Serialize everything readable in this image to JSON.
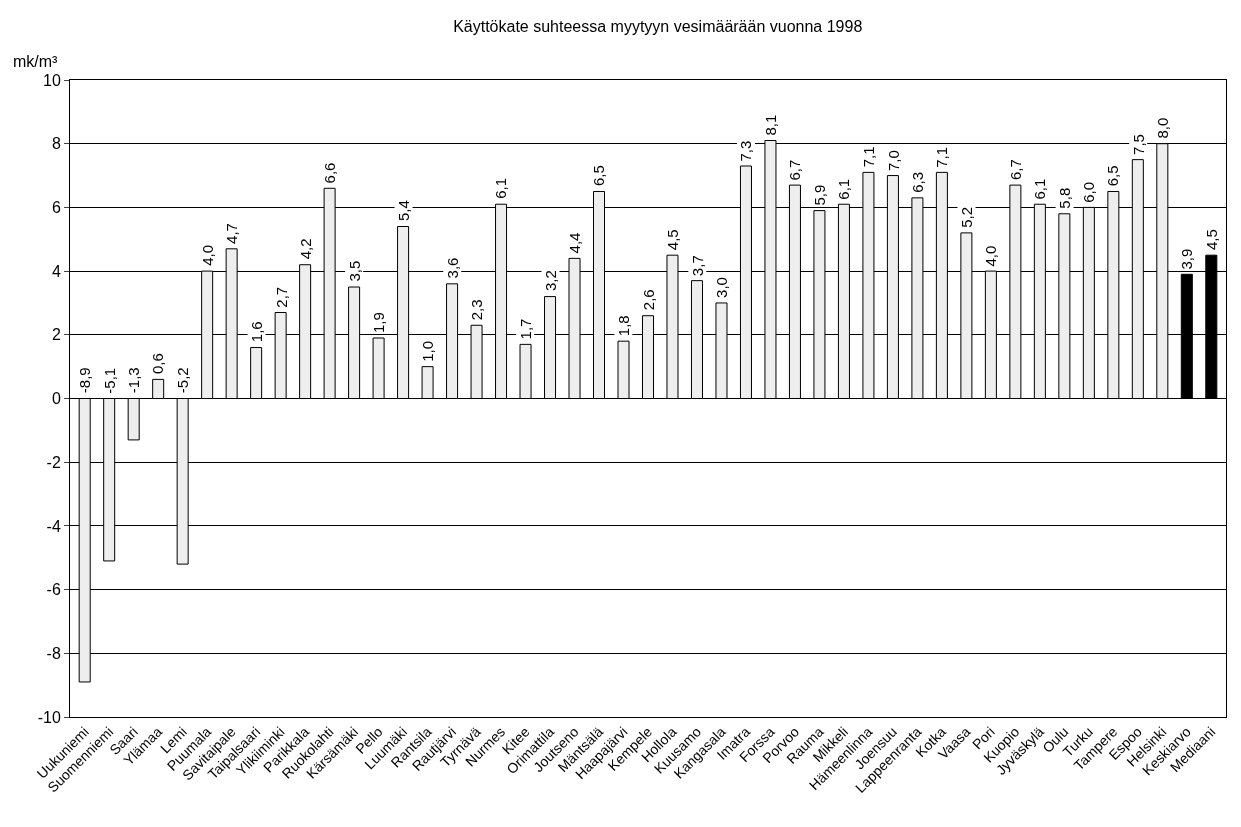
{
  "chart_data": {
    "type": "bar",
    "title": "Käyttökate suhteessa myytyyn vesimäärään vuonna 1998",
    "ylabel": "mk/m³",
    "categories": [
      "Uukuniemi",
      "Suomenniemi",
      "Saari",
      "Ylämaa",
      "Lemi",
      "Puumala",
      "Savitaipale",
      "Taipalsaari",
      "Ylikiiminki",
      "Parikkala",
      "Ruokolahti",
      "Kärsämäki",
      "Pello",
      "Luumäki",
      "Rantsila",
      "Rautjärvi",
      "Tyrnävä",
      "Nurmes",
      "Kitee",
      "Orimattila",
      "Joutseno",
      "Mäntsälä",
      "Haapajärvi",
      "Kempele",
      "Hollola",
      "Kuusamo",
      "Kangasala",
      "Imatra",
      "Forssa",
      "Porvoo",
      "Rauma",
      "Mikkeli",
      "Hämeenlinna",
      "Joensuu",
      "Lappeenranta",
      "Kotka",
      "Vaasa",
      "Pori",
      "Kuopio",
      "Jyväskylä",
      "Oulu",
      "Turku",
      "Tampere",
      "Espoo",
      "Helsinki",
      "Keskiarvo",
      "Mediaani"
    ],
    "values": [
      -8.9,
      -5.1,
      -1.3,
      0.6,
      -5.2,
      4.0,
      4.7,
      1.6,
      2.7,
      4.2,
      6.6,
      3.5,
      1.9,
      5.4,
      1.0,
      3.6,
      2.3,
      6.1,
      1.7,
      3.2,
      4.4,
      6.5,
      1.8,
      2.6,
      4.5,
      3.7,
      3.0,
      7.3,
      8.1,
      6.7,
      5.9,
      6.1,
      7.1,
      7.0,
      6.3,
      7.1,
      5.2,
      4.0,
      6.7,
      6.1,
      5.8,
      6.0,
      6.5,
      7.5,
      8.0,
      3.9,
      4.5
    ],
    "value_labels": [
      "-8,9",
      "-5,1",
      "-1,3",
      "0,6",
      "-5,2",
      "4,0",
      "4,7",
      "1,6",
      "2,7",
      "4,2",
      "6,6",
      "3,5",
      "1,9",
      "5,4",
      "1,0",
      "3,6",
      "2,3",
      "6,1",
      "1,7",
      "3,2",
      "4,4",
      "6,5",
      "1,8",
      "2,6",
      "4,5",
      "3,7",
      "3,0",
      "7,3",
      "8,1",
      "6,7",
      "5,9",
      "6,1",
      "7,1",
      "7,0",
      "6,3",
      "7,1",
      "5,2",
      "4,0",
      "6,7",
      "6,1",
      "5,8",
      "6,0",
      "6,5",
      "7,5",
      "8,0",
      "3,9",
      "4,5"
    ],
    "colors": [
      "#eeeeee",
      "#eeeeee",
      "#eeeeee",
      "#eeeeee",
      "#eeeeee",
      "#eeeeee",
      "#eeeeee",
      "#eeeeee",
      "#eeeeee",
      "#eeeeee",
      "#eeeeee",
      "#eeeeee",
      "#eeeeee",
      "#eeeeee",
      "#eeeeee",
      "#eeeeee",
      "#eeeeee",
      "#eeeeee",
      "#eeeeee",
      "#eeeeee",
      "#eeeeee",
      "#eeeeee",
      "#eeeeee",
      "#eeeeee",
      "#eeeeee",
      "#eeeeee",
      "#eeeeee",
      "#eeeeee",
      "#eeeeee",
      "#eeeeee",
      "#eeeeee",
      "#eeeeee",
      "#eeeeee",
      "#eeeeee",
      "#eeeeee",
      "#eeeeee",
      "#eeeeee",
      "#eeeeee",
      "#eeeeee",
      "#eeeeee",
      "#eeeeee",
      "#eeeeee",
      "#eeeeee",
      "#eeeeee",
      "#eeeeee",
      "#000000",
      "#000000"
    ],
    "ylim": [
      -10,
      10
    ],
    "yticks": [
      -10,
      -8,
      -6,
      -4,
      -2,
      0,
      2,
      4,
      6,
      8,
      10
    ],
    "grid": "y"
  }
}
